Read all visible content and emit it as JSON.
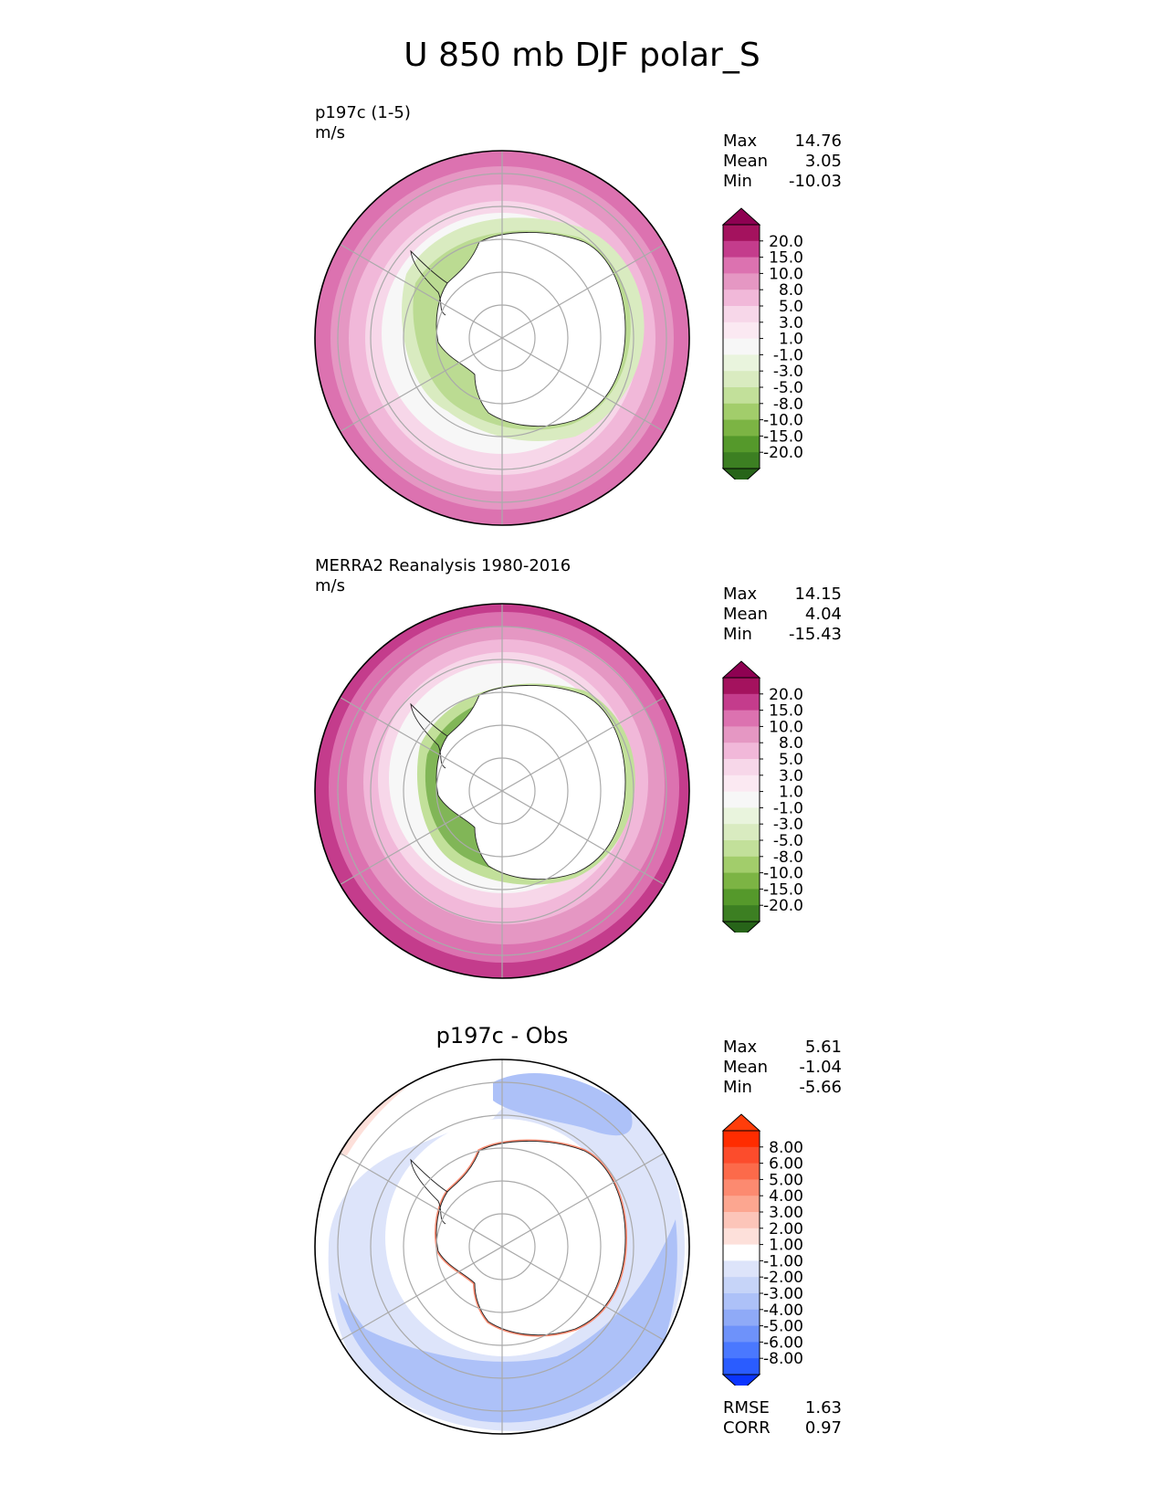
{
  "title": "U 850 mb DJF polar_S",
  "colors": {
    "prgn": [
      "#276419",
      "#3c7f22",
      "#55992b",
      "#7cb444",
      "#a2cd6b",
      "#c2e09a",
      "#d9ebc0",
      "#e9f4dd",
      "#f7f7f7",
      "#fbe9f2",
      "#f7d7e9",
      "#f1b8d9",
      "#e597c3",
      "#dc72b0",
      "#c43c8c",
      "#a4125e",
      "#8e0152"
    ],
    "diff": [
      "#0a35ff",
      "#2a5cff",
      "#4a78ff",
      "#6e92fa",
      "#8faaf7",
      "#adc1f8",
      "#c6d4f8",
      "#dde4fa",
      "#ffffff",
      "#fde0da",
      "#fcc5b9",
      "#fca690",
      "#fc8a70",
      "#fc6a4a",
      "#fc4c2c",
      "#ff2c00",
      "#ff3d0a"
    ]
  },
  "panels": [
    {
      "label_line1": "p197c (1-5)",
      "label_line2": "m/s",
      "stats": {
        "max_label": "Max",
        "max": "14.76",
        "mean_label": "Mean",
        "mean": "3.05",
        "min_label": "Min",
        "min": "-10.03"
      },
      "colorbar": {
        "ticks": [
          "20.0",
          "15.0",
          "10.0",
          "8.0",
          "5.0",
          "3.0",
          "1.0",
          "-1.0",
          "-3.0",
          "-5.0",
          "-8.0",
          "-10.0",
          "-15.0",
          "-20.0"
        ]
      }
    },
    {
      "label_line1": "MERRA2 Reanalysis 1980-2016",
      "label_line2": "m/s",
      "stats": {
        "max_label": "Max",
        "max": "14.15",
        "mean_label": "Mean",
        "mean": "4.04",
        "min_label": "Min",
        "min": "-15.43"
      },
      "colorbar": {
        "ticks": [
          "20.0",
          "15.0",
          "10.0",
          "8.0",
          "5.0",
          "3.0",
          "1.0",
          "-1.0",
          "-3.0",
          "-5.0",
          "-8.0",
          "-10.0",
          "-15.0",
          "-20.0"
        ]
      }
    },
    {
      "title": "p197c - Obs",
      "stats": {
        "max_label": "Max",
        "max": "5.61",
        "mean_label": "Mean",
        "mean": "-1.04",
        "min_label": "Min",
        "min": "-5.66"
      },
      "metrics": {
        "rmse_label": "RMSE",
        "rmse": "1.63",
        "corr_label": "CORR",
        "corr": "0.97"
      },
      "colorbar": {
        "ticks": [
          "8.00",
          "6.00",
          "5.00",
          "4.00",
          "3.00",
          "2.00",
          "1.00",
          "-1.00",
          "-2.00",
          "-3.00",
          "-4.00",
          "-5.00",
          "-6.00",
          "-8.00"
        ]
      }
    }
  ],
  "chart_data": [
    {
      "type": "heatmap",
      "projection": "south polar stereographic",
      "title": "p197c (1-5)",
      "units": "m/s",
      "max": 14.76,
      "mean": 3.05,
      "min": -10.03,
      "levels": [
        -20,
        -15,
        -10,
        -8,
        -5,
        -3,
        -1,
        1,
        3,
        5,
        8,
        10,
        15,
        20
      ]
    },
    {
      "type": "heatmap",
      "projection": "south polar stereographic",
      "title": "MERRA2 Reanalysis 1980-2016",
      "units": "m/s",
      "max": 14.15,
      "mean": 4.04,
      "min": -15.43,
      "levels": [
        -20,
        -15,
        -10,
        -8,
        -5,
        -3,
        -1,
        1,
        3,
        5,
        8,
        10,
        15,
        20
      ]
    },
    {
      "type": "heatmap",
      "projection": "south polar stereographic",
      "title": "p197c - Obs",
      "max": 5.61,
      "mean": -1.04,
      "min": -5.66,
      "rmse": 1.63,
      "corr": 0.97,
      "levels": [
        -8,
        -6,
        -5,
        -4,
        -3,
        -2,
        -1,
        1,
        2,
        3,
        4,
        5,
        6,
        8
      ]
    }
  ]
}
